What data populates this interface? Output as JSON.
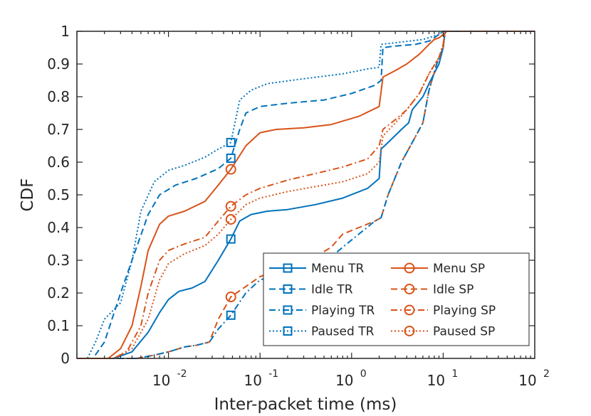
{
  "chart_data": {
    "type": "line",
    "title": "",
    "xlabel": "Inter-packet time (ms)",
    "ylabel": "CDF",
    "xscale": "log",
    "xlim": [
      0.001,
      100
    ],
    "ylim": [
      0,
      1
    ],
    "grid": false,
    "legend_position": "lower-right",
    "x_ticks": [
      {
        "value": 0.01,
        "base": "10",
        "exp": "-2"
      },
      {
        "value": 0.1,
        "base": "10",
        "exp": "-1"
      },
      {
        "value": 1,
        "base": "10",
        "exp": "0"
      },
      {
        "value": 10,
        "base": "10",
        "exp": "1"
      },
      {
        "value": 100,
        "base": "10",
        "exp": "2"
      }
    ],
    "y_ticks": [
      {
        "value": 0,
        "label": "0"
      },
      {
        "value": 0.1,
        "label": "0.1"
      },
      {
        "value": 0.2,
        "label": "0.2"
      },
      {
        "value": 0.3,
        "label": "0.3"
      },
      {
        "value": 0.4,
        "label": "0.4"
      },
      {
        "value": 0.5,
        "label": "0.5"
      },
      {
        "value": 0.6,
        "label": "0.6"
      },
      {
        "value": 0.7,
        "label": "0.7"
      },
      {
        "value": 0.8,
        "label": "0.8"
      },
      {
        "value": 0.9,
        "label": "0.9"
      },
      {
        "value": 1,
        "label": "1"
      }
    ],
    "colors": {
      "TR": "#0072BD",
      "SP": "#D95319",
      "axis": "#262626"
    },
    "series": [
      {
        "name": "Menu TR",
        "color": "#0072BD",
        "dash": "solid",
        "marker": "square",
        "marker_at": {
          "x": 0.048,
          "y": 0.365
        },
        "points": [
          [
            0.0025,
            0
          ],
          [
            0.004,
            0.02
          ],
          [
            0.006,
            0.08
          ],
          [
            0.008,
            0.14
          ],
          [
            0.01,
            0.18
          ],
          [
            0.013,
            0.205
          ],
          [
            0.018,
            0.215
          ],
          [
            0.025,
            0.235
          ],
          [
            0.035,
            0.3
          ],
          [
            0.048,
            0.365
          ],
          [
            0.06,
            0.42
          ],
          [
            0.08,
            0.44
          ],
          [
            0.12,
            0.45
          ],
          [
            0.2,
            0.455
          ],
          [
            0.4,
            0.47
          ],
          [
            0.8,
            0.49
          ],
          [
            1.5,
            0.52
          ],
          [
            2.0,
            0.55
          ],
          [
            2.1,
            0.64
          ],
          [
            2.5,
            0.66
          ],
          [
            3.5,
            0.7
          ],
          [
            4.2,
            0.72
          ],
          [
            4.6,
            0.76
          ],
          [
            6,
            0.8
          ],
          [
            7,
            0.84
          ],
          [
            9,
            0.9
          ],
          [
            10,
            0.95
          ],
          [
            10.5,
            1
          ]
        ]
      },
      {
        "name": "Menu SP",
        "color": "#D95319",
        "dash": "solid",
        "marker": "circle",
        "marker_at": {
          "x": 0.048,
          "y": 0.578
        },
        "points": [
          [
            0.0022,
            0
          ],
          [
            0.003,
            0.03
          ],
          [
            0.004,
            0.1
          ],
          [
            0.005,
            0.22
          ],
          [
            0.006,
            0.33
          ],
          [
            0.008,
            0.41
          ],
          [
            0.01,
            0.435
          ],
          [
            0.015,
            0.45
          ],
          [
            0.025,
            0.48
          ],
          [
            0.035,
            0.53
          ],
          [
            0.048,
            0.578
          ],
          [
            0.07,
            0.65
          ],
          [
            0.1,
            0.69
          ],
          [
            0.15,
            0.7
          ],
          [
            0.3,
            0.705
          ],
          [
            0.6,
            0.715
          ],
          [
            1.2,
            0.74
          ],
          [
            2.0,
            0.77
          ],
          [
            2.2,
            0.86
          ],
          [
            3,
            0.88
          ],
          [
            4,
            0.9
          ],
          [
            5.5,
            0.93
          ],
          [
            7,
            0.96
          ],
          [
            8,
            0.975
          ],
          [
            9,
            0.98
          ],
          [
            10,
            0.99
          ],
          [
            11,
            1
          ]
        ]
      },
      {
        "name": "Idle TR",
        "color": "#0072BD",
        "dash": "dashed",
        "marker": "square",
        "marker_at": {
          "x": 0.048,
          "y": 0.612
        },
        "points": [
          [
            0.0015,
            0
          ],
          [
            0.002,
            0.05
          ],
          [
            0.003,
            0.2
          ],
          [
            0.004,
            0.3
          ],
          [
            0.006,
            0.44
          ],
          [
            0.008,
            0.5
          ],
          [
            0.012,
            0.53
          ],
          [
            0.02,
            0.55
          ],
          [
            0.035,
            0.58
          ],
          [
            0.048,
            0.612
          ],
          [
            0.06,
            0.7
          ],
          [
            0.07,
            0.75
          ],
          [
            0.1,
            0.77
          ],
          [
            0.2,
            0.78
          ],
          [
            0.5,
            0.79
          ],
          [
            1,
            0.81
          ],
          [
            1.8,
            0.835
          ],
          [
            2.1,
            0.85
          ],
          [
            2.2,
            0.95
          ],
          [
            3,
            0.955
          ],
          [
            5,
            0.96
          ],
          [
            7,
            0.97
          ],
          [
            9,
            0.99
          ],
          [
            10,
            1
          ]
        ]
      },
      {
        "name": "Idle SP",
        "color": "#D95319",
        "dash": "dashed",
        "marker": "circle",
        "marker_at": {
          "x": 0.048,
          "y": 0.188
        },
        "points": [
          [
            0.0045,
            0
          ],
          [
            0.007,
            0.01
          ],
          [
            0.01,
            0.02
          ],
          [
            0.015,
            0.035
          ],
          [
            0.02,
            0.04
          ],
          [
            0.028,
            0.05
          ],
          [
            0.035,
            0.12
          ],
          [
            0.048,
            0.188
          ],
          [
            0.07,
            0.22
          ],
          [
            0.1,
            0.25
          ],
          [
            0.2,
            0.28
          ],
          [
            0.4,
            0.31
          ],
          [
            0.6,
            0.34
          ],
          [
            0.8,
            0.38
          ],
          [
            1.2,
            0.4
          ],
          [
            1.8,
            0.42
          ],
          [
            2.1,
            0.43
          ],
          [
            2.5,
            0.5
          ],
          [
            3.5,
            0.6
          ],
          [
            4.2,
            0.64
          ],
          [
            4.6,
            0.66
          ],
          [
            6,
            0.72
          ],
          [
            7,
            0.82
          ],
          [
            8.5,
            0.9
          ],
          [
            10,
            0.95
          ],
          [
            10.5,
            1
          ]
        ]
      },
      {
        "name": "Playing TR",
        "color": "#0072BD",
        "dash": "dashdot",
        "marker": "square",
        "marker_at": {
          "x": 0.048,
          "y": 0.132
        },
        "points": [
          [
            0.0045,
            0
          ],
          [
            0.007,
            0.01
          ],
          [
            0.01,
            0.02
          ],
          [
            0.015,
            0.035
          ],
          [
            0.02,
            0.04
          ],
          [
            0.028,
            0.05
          ],
          [
            0.035,
            0.09
          ],
          [
            0.048,
            0.132
          ],
          [
            0.07,
            0.2
          ],
          [
            0.1,
            0.24
          ],
          [
            0.2,
            0.265
          ],
          [
            0.4,
            0.29
          ],
          [
            0.6,
            0.31
          ],
          [
            0.8,
            0.34
          ],
          [
            1.2,
            0.38
          ],
          [
            1.8,
            0.42
          ],
          [
            2.1,
            0.43
          ],
          [
            2.5,
            0.5
          ],
          [
            3.5,
            0.6
          ],
          [
            4.2,
            0.64
          ],
          [
            4.6,
            0.66
          ],
          [
            6,
            0.72
          ],
          [
            7,
            0.82
          ],
          [
            8.5,
            0.9
          ],
          [
            10,
            0.95
          ],
          [
            10.5,
            1
          ]
        ]
      },
      {
        "name": "Playing SP",
        "color": "#D95319",
        "dash": "dashdot",
        "marker": "circle",
        "marker_at": {
          "x": 0.048,
          "y": 0.465
        },
        "points": [
          [
            0.0025,
            0
          ],
          [
            0.0035,
            0.02
          ],
          [
            0.005,
            0.1
          ],
          [
            0.006,
            0.2
          ],
          [
            0.008,
            0.3
          ],
          [
            0.01,
            0.33
          ],
          [
            0.015,
            0.35
          ],
          [
            0.025,
            0.37
          ],
          [
            0.035,
            0.42
          ],
          [
            0.048,
            0.465
          ],
          [
            0.07,
            0.5
          ],
          [
            0.1,
            0.52
          ],
          [
            0.2,
            0.545
          ],
          [
            0.4,
            0.565
          ],
          [
            0.8,
            0.585
          ],
          [
            1.5,
            0.61
          ],
          [
            2.0,
            0.65
          ],
          [
            2.2,
            0.7
          ],
          [
            3,
            0.73
          ],
          [
            4,
            0.76
          ],
          [
            5.5,
            0.81
          ],
          [
            7,
            0.87
          ],
          [
            9,
            0.92
          ],
          [
            10,
            0.96
          ],
          [
            10.5,
            1
          ]
        ]
      },
      {
        "name": "Paused TR",
        "color": "#0072BD",
        "dash": "dotted",
        "marker": "square",
        "marker_at": {
          "x": 0.048,
          "y": 0.66
        },
        "points": [
          [
            0.0013,
            0
          ],
          [
            0.0016,
            0.05
          ],
          [
            0.002,
            0.12
          ],
          [
            0.003,
            0.17
          ],
          [
            0.004,
            0.3
          ],
          [
            0.005,
            0.45
          ],
          [
            0.007,
            0.54
          ],
          [
            0.01,
            0.575
          ],
          [
            0.015,
            0.59
          ],
          [
            0.025,
            0.615
          ],
          [
            0.035,
            0.64
          ],
          [
            0.048,
            0.66
          ],
          [
            0.06,
            0.79
          ],
          [
            0.08,
            0.82
          ],
          [
            0.12,
            0.84
          ],
          [
            0.3,
            0.855
          ],
          [
            0.8,
            0.87
          ],
          [
            1.5,
            0.885
          ],
          [
            2.0,
            0.89
          ],
          [
            2.1,
            0.96
          ],
          [
            3,
            0.965
          ],
          [
            6,
            0.975
          ],
          [
            9,
            0.99
          ],
          [
            10,
            1
          ]
        ]
      },
      {
        "name": "Paused SP",
        "color": "#D95319",
        "dash": "dotted",
        "marker": "circle",
        "marker_at": {
          "x": 0.048,
          "y": 0.425
        },
        "points": [
          [
            0.0025,
            0
          ],
          [
            0.004,
            0.03
          ],
          [
            0.006,
            0.12
          ],
          [
            0.008,
            0.24
          ],
          [
            0.01,
            0.29
          ],
          [
            0.015,
            0.32
          ],
          [
            0.025,
            0.345
          ],
          [
            0.035,
            0.38
          ],
          [
            0.048,
            0.425
          ],
          [
            0.07,
            0.47
          ],
          [
            0.1,
            0.49
          ],
          [
            0.2,
            0.51
          ],
          [
            0.4,
            0.525
          ],
          [
            0.8,
            0.54
          ],
          [
            1.5,
            0.565
          ],
          [
            2.0,
            0.6
          ],
          [
            2.2,
            0.68
          ],
          [
            3,
            0.72
          ],
          [
            4,
            0.76
          ],
          [
            5.5,
            0.81
          ],
          [
            7,
            0.87
          ],
          [
            9,
            0.92
          ],
          [
            10,
            0.96
          ],
          [
            10.5,
            1
          ]
        ]
      }
    ]
  }
}
